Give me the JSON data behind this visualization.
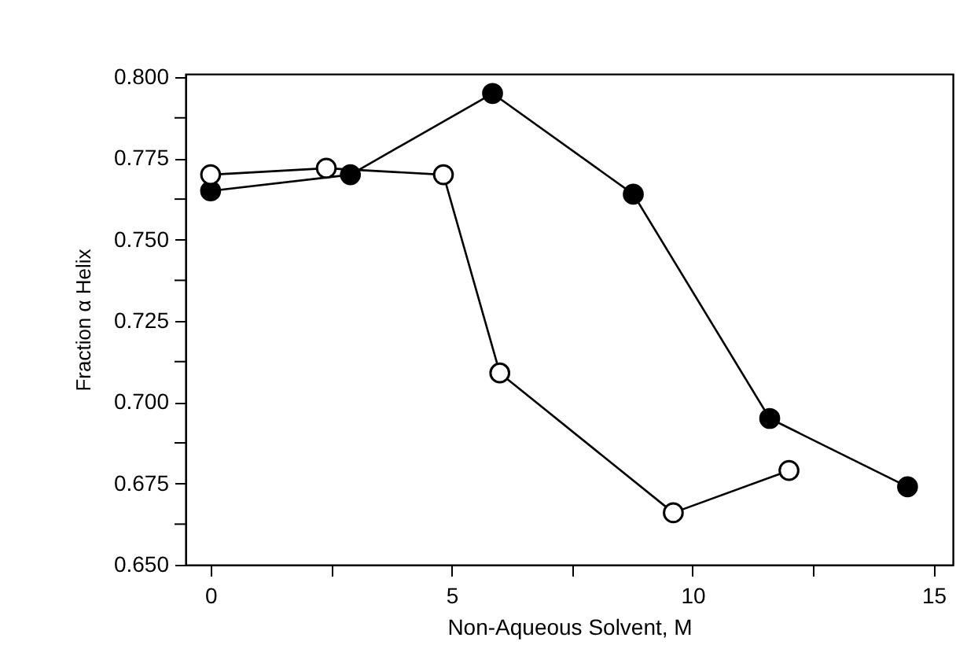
{
  "chart_data": {
    "type": "line",
    "xlabel": "Non-Aqueous Solvent, M",
    "ylabel": "Fraction α Helix",
    "xlim": [
      -0.52,
      15.4
    ],
    "xticks": [
      0,
      {
        "value": 2.5,
        "label": null
      },
      5,
      {
        "value": 7.5,
        "label": null
      },
      10,
      {
        "value": 12.5,
        "label": null
      },
      15
    ],
    "ylim": [
      0.65,
      0.801
    ],
    "yticks": [
      {
        "value": 0.65,
        "label": "0.650"
      },
      {
        "value": 0.6625,
        "label": null
      },
      {
        "value": 0.675,
        "label": "0.675"
      },
      {
        "value": 0.6875,
        "label": null
      },
      {
        "value": 0.7,
        "label": "0.700"
      },
      {
        "value": 0.7125,
        "label": null
      },
      {
        "value": 0.725,
        "label": "0.725"
      },
      {
        "value": 0.7375,
        "label": null
      },
      {
        "value": 0.75,
        "label": "0.750"
      },
      {
        "value": 0.7625,
        "label": null
      },
      {
        "value": 0.775,
        "label": "0.775"
      },
      {
        "value": 0.7875,
        "label": null
      },
      {
        "value": 0.8,
        "label": "0.800"
      }
    ],
    "grid": false,
    "marker": "circle",
    "line_style": "solid",
    "series": [
      {
        "color": "#000000",
        "x": [
          0,
          2.9,
          5.85,
          8.77,
          11.6,
          14.46
        ],
        "values": [
          0.765,
          0.77,
          0.795,
          0.764,
          0.695,
          0.674
        ]
      },
      {
        "color": "#000000",
        "x": [
          0,
          2.4,
          4.83,
          6.0,
          9.6,
          12.0
        ],
        "values": [
          0.77,
          0.772,
          0.77,
          0.709,
          0.666,
          0.679
        ]
      }
    ]
  }
}
